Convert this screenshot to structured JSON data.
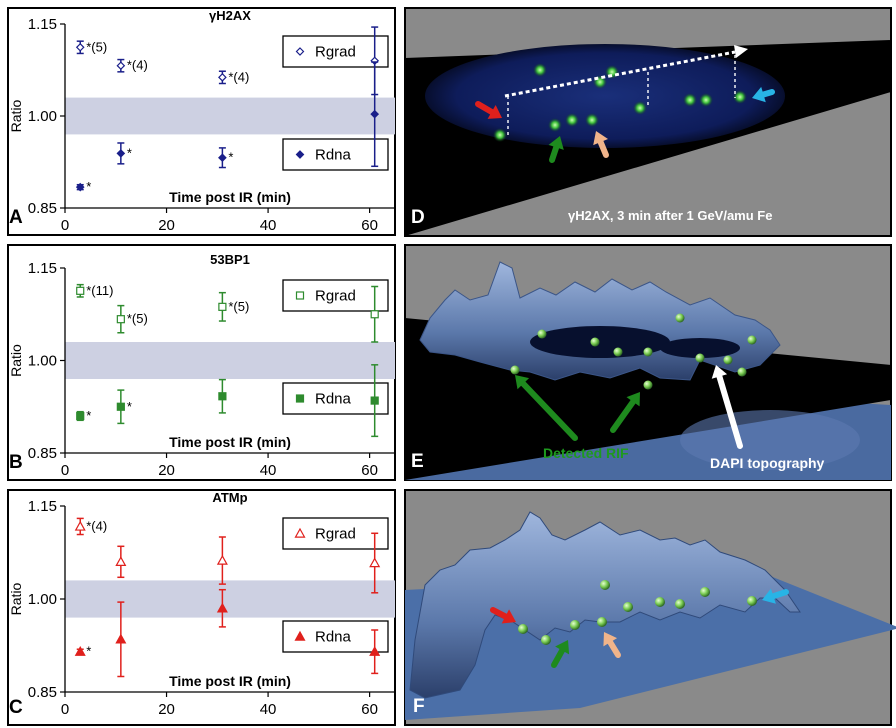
{
  "chart_data": [
    {
      "type": "scatter",
      "panel_letter": "A",
      "title": "γH2AX",
      "xlabel": "Time post IR (min)",
      "ylabel": "Ratio",
      "xlim": [
        0,
        65
      ],
      "ylim": [
        0.85,
        1.15
      ],
      "x_ticks": [
        "0",
        "20",
        "40",
        "60"
      ],
      "y_ticks": [
        "0.85",
        "1.00",
        "1.15"
      ],
      "band": [
        0.97,
        1.03
      ],
      "color": "#1a1f8a",
      "series": [
        {
          "name": "Rgrad",
          "marker": "diamond-open",
          "points": [
            {
              "x": 3,
              "y": 1.112,
              "err": 0.01,
              "label": "*(5)"
            },
            {
              "x": 11,
              "y": 1.082,
              "err": 0.01,
              "label": "*(4)"
            },
            {
              "x": 31,
              "y": 1.063,
              "err": 0.01,
              "label": "*(4)"
            },
            {
              "x": 61,
              "y": 1.09,
              "err": 0.055,
              "label": ""
            }
          ]
        },
        {
          "name": "Rdna",
          "marker": "diamond-filled",
          "points": [
            {
              "x": 3,
              "y": 0.884,
              "err": 0.004,
              "label": "*"
            },
            {
              "x": 11,
              "y": 0.939,
              "err": 0.017,
              "label": "*"
            },
            {
              "x": 31,
              "y": 0.932,
              "err": 0.016,
              "label": "*"
            },
            {
              "x": 61,
              "y": 1.003,
              "err": 0.085,
              "label": ""
            }
          ]
        }
      ]
    },
    {
      "type": "scatter",
      "panel_letter": "B",
      "title": "53BP1",
      "xlabel": "Time post IR (min)",
      "ylabel": "Ratio",
      "xlim": [
        0,
        65
      ],
      "ylim": [
        0.85,
        1.15
      ],
      "x_ticks": [
        "0",
        "20",
        "40",
        "60"
      ],
      "y_ticks": [
        "0.85",
        "1.00",
        "1.15"
      ],
      "band": [
        0.97,
        1.03
      ],
      "color": "#2e8b2e",
      "series": [
        {
          "name": "Rgrad",
          "marker": "square-open",
          "points": [
            {
              "x": 3,
              "y": 1.113,
              "err": 0.01,
              "label": "*(11)"
            },
            {
              "x": 11,
              "y": 1.067,
              "err": 0.022,
              "label": "*(5)"
            },
            {
              "x": 31,
              "y": 1.087,
              "err": 0.023,
              "label": "*(5)"
            },
            {
              "x": 61,
              "y": 1.075,
              "err": 0.045,
              "label": ""
            }
          ]
        },
        {
          "name": "Rdna",
          "marker": "square-filled",
          "points": [
            {
              "x": 3,
              "y": 0.91,
              "err": 0.007,
              "label": "*"
            },
            {
              "x": 11,
              "y": 0.925,
              "err": 0.027,
              "label": "*"
            },
            {
              "x": 31,
              "y": 0.942,
              "err": 0.027,
              "label": ""
            },
            {
              "x": 61,
              "y": 0.935,
              "err": 0.058,
              "label": ""
            }
          ]
        }
      ]
    },
    {
      "type": "scatter",
      "panel_letter": "C",
      "title": "ATMp",
      "xlabel": "Time post IR (min)",
      "ylabel": "Ratio",
      "xlim": [
        0,
        65
      ],
      "ylim": [
        0.85,
        1.15
      ],
      "x_ticks": [
        "0",
        "20",
        "40",
        "60"
      ],
      "y_ticks": [
        "0.85",
        "1.00",
        "1.15"
      ],
      "band": [
        0.97,
        1.03
      ],
      "color": "#e0201c",
      "series": [
        {
          "name": "Rgrad",
          "marker": "triangle-open",
          "points": [
            {
              "x": 3,
              "y": 1.117,
              "err": 0.013,
              "label": "*(4)"
            },
            {
              "x": 11,
              "y": 1.06,
              "err": 0.025,
              "label": ""
            },
            {
              "x": 31,
              "y": 1.062,
              "err": 0.038,
              "label": ""
            },
            {
              "x": 61,
              "y": 1.058,
              "err": 0.048,
              "label": ""
            }
          ]
        },
        {
          "name": "Rdna",
          "marker": "triangle-filled",
          "points": [
            {
              "x": 3,
              "y": 0.915,
              "err": 0.004,
              "label": "*"
            },
            {
              "x": 11,
              "y": 0.935,
              "err": 0.06,
              "label": ""
            },
            {
              "x": 31,
              "y": 0.985,
              "err": 0.03,
              "label": ""
            },
            {
              "x": 61,
              "y": 0.915,
              "err": 0.035,
              "label": ""
            }
          ]
        }
      ]
    }
  ],
  "image_panels": [
    {
      "letter": "D",
      "caption": "γH2AX, 3 min after 1 GeV/amu Fe"
    },
    {
      "letter": "E",
      "labels": [
        "Detected RIF",
        "DAPI topography"
      ]
    },
    {
      "letter": "F"
    }
  ],
  "colors": {
    "band": "#cdd0e2",
    "image_background": "#8a8a8a",
    "surface_blue": "#6a87b8",
    "rif_green": "#7acc52",
    "label_green": "#1e9a1e",
    "arrow_red": "#e0201c",
    "arrow_green": "#1e8a1e",
    "arrow_peach": "#f0b48a",
    "arrow_cyan": "#28b4e6"
  }
}
